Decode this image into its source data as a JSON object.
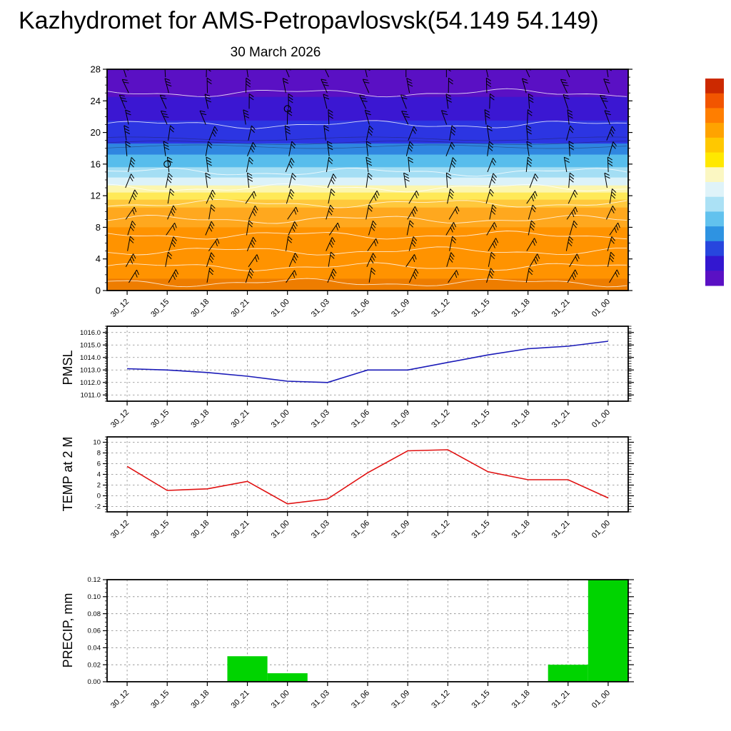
{
  "title": "Kazhydromet for AMS-Petropavlosvsk(54.149 54.149)",
  "x_categories": [
    "30_12",
    "30_15",
    "30_18",
    "30_21",
    "31_00",
    "31_03",
    "31_06",
    "31_09",
    "31_12",
    "31_15",
    "31_18",
    "31_21",
    "01_00"
  ],
  "chart_data": [
    {
      "type": "heatmap",
      "title": "30 March 2026",
      "description": "time-height section: temperature shading with white contour lines and black wind barbs",
      "categories": [
        "30_12",
        "30_15",
        "30_18",
        "30_21",
        "31_00",
        "31_03",
        "31_06",
        "31_09",
        "31_12",
        "31_15",
        "31_18",
        "31_21",
        "01_00"
      ],
      "ylim": [
        0,
        28
      ],
      "yticks": [
        0,
        4,
        8,
        12,
        16,
        20,
        24,
        28
      ],
      "color_bands": [
        {
          "from": 0,
          "to": 1.5,
          "color": "#ee7d00"
        },
        {
          "from": 1.5,
          "to": 8,
          "color": "#ff9300"
        },
        {
          "from": 8,
          "to": 10.5,
          "color": "#ffa81e"
        },
        {
          "from": 10.5,
          "to": 11.5,
          "color": "#ffc83c"
        },
        {
          "from": 11.5,
          "to": 12.4,
          "color": "#ffe957"
        },
        {
          "from": 12.4,
          "to": 13.3,
          "color": "#fcf6ae"
        },
        {
          "from": 13.3,
          "to": 14.3,
          "color": "#dcf2f9"
        },
        {
          "from": 14.3,
          "to": 15.6,
          "color": "#a4def4"
        },
        {
          "from": 15.6,
          "to": 17.2,
          "color": "#57bdec"
        },
        {
          "from": 17.2,
          "to": 18.6,
          "color": "#2f86e0"
        },
        {
          "from": 18.6,
          "to": 21.5,
          "color": "#2c35e2"
        },
        {
          "from": 21.5,
          "to": 24.5,
          "color": "#3b17d2"
        },
        {
          "from": 24.5,
          "to": 28,
          "color": "#5a10c4"
        }
      ],
      "contour_levels": [
        1,
        3,
        5,
        7,
        9,
        11,
        13,
        15,
        21,
        25
      ],
      "contour_levels_dark": [
        18.2,
        18.7,
        19.2
      ],
      "barb_levels": [
        1,
        3,
        5,
        7,
        9,
        11,
        13,
        15,
        17,
        19,
        21,
        23,
        25,
        27
      ],
      "calm_points": [
        {
          "x_index": 1,
          "level": 16
        },
        {
          "x_index": 4,
          "level": 23
        }
      ]
    },
    {
      "type": "line",
      "ylabel": "PMSL",
      "line_color": "#1a1ab8",
      "categories": [
        "30_12",
        "30_15",
        "30_18",
        "30_21",
        "31_00",
        "31_03",
        "31_06",
        "31_09",
        "31_12",
        "31_15",
        "31_18",
        "31_21",
        "01_00"
      ],
      "values": [
        1013.1,
        1013.0,
        1012.8,
        1012.5,
        1012.1,
        1012.0,
        1013.0,
        1013.0,
        1013.6,
        1014.2,
        1014.7,
        1014.9,
        1015.3
      ],
      "ylim": [
        1010.5,
        1016.5
      ],
      "yticks": [
        1011.0,
        1012.0,
        1013.0,
        1014.0,
        1015.0,
        1016.0
      ],
      "ytick_labels": [
        "1011.0",
        "1012.0",
        "1013.0",
        "1014.0",
        "1015.0",
        "1016.0"
      ],
      "minor_step": 0.2,
      "grid": true
    },
    {
      "type": "line",
      "ylabel": "TEMP at 2 M",
      "line_color": "#e01010",
      "categories": [
        "30_12",
        "30_15",
        "30_18",
        "30_21",
        "31_00",
        "31_03",
        "31_06",
        "31_09",
        "31_12",
        "31_15",
        "31_18",
        "31_21",
        "01_00"
      ],
      "values": [
        5.5,
        1.0,
        1.3,
        2.7,
        -1.5,
        -0.6,
        4.3,
        8.4,
        8.6,
        4.5,
        3.0,
        3.0,
        -0.4
      ],
      "ylim": [
        -3,
        11
      ],
      "yticks": [
        -2,
        0,
        2,
        4,
        6,
        8,
        10
      ],
      "ytick_labels": [
        "-2",
        "0",
        "2",
        "4",
        "6",
        "8",
        "10"
      ],
      "minor_step": 0.5,
      "grid": true
    },
    {
      "type": "bar",
      "ylabel": "PRECIP, mm",
      "bar_color": "#00d400",
      "categories": [
        "30_12",
        "30_15",
        "30_18",
        "30_21",
        "31_00",
        "31_03",
        "31_06",
        "31_09",
        "31_12",
        "31_15",
        "31_18",
        "31_21",
        "01_00"
      ],
      "values": [
        0,
        0,
        0,
        0.03,
        0.01,
        0,
        0,
        0,
        0,
        0,
        0,
        0.02,
        0.12
      ],
      "ylim": [
        0,
        0.12
      ],
      "yticks": [
        0,
        0.02,
        0.04,
        0.06,
        0.08,
        0.1,
        0.12
      ],
      "ytick_labels": [
        "0.00",
        "0.02",
        "0.04",
        "0.06",
        "0.08",
        "0.10",
        "0.12"
      ],
      "minor_step": 0.005,
      "grid": true
    }
  ],
  "colorbar": {
    "orientation": "vertical",
    "colors_top_to_bottom": [
      "#cc2900",
      "#f25500",
      "#ff7e00",
      "#ffa300",
      "#ffc800",
      "#ffe800",
      "#fbf7c2",
      "#dff3f9",
      "#abe1f5",
      "#62c2ee",
      "#2e93e2",
      "#2746de",
      "#3317d0",
      "#5a10c4"
    ]
  }
}
